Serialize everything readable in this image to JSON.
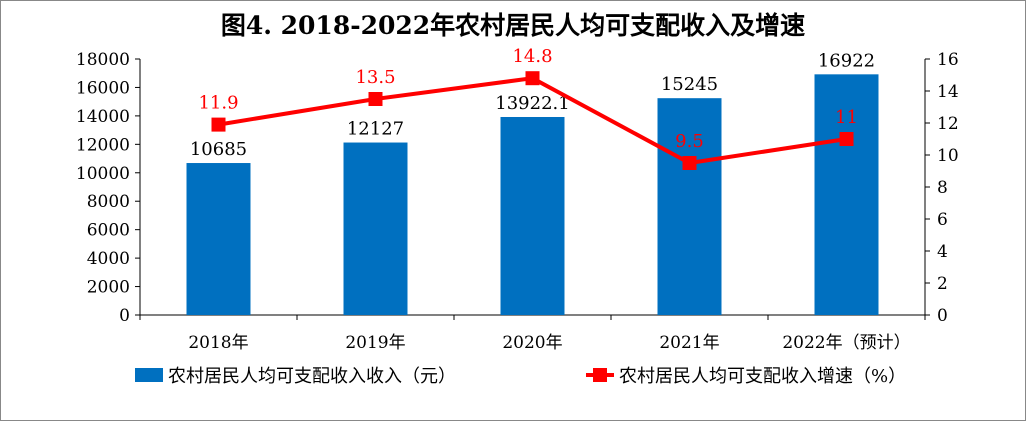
{
  "chart_data": {
    "type": "bar+line",
    "title": "图4. 2018-2022年农村居民人均可支配收入及增速",
    "categories": [
      "2018年",
      "2019年",
      "2020年",
      "2021年",
      "2022年（预计）"
    ],
    "series": [
      {
        "name": "农村居民人均可支配收入收入（元）",
        "type": "bar",
        "axis": "left",
        "color": "#0070C0",
        "values": [
          10685,
          12127,
          13922.1,
          15245,
          16922
        ],
        "labels": [
          "10685",
          "12127",
          "13922.1",
          "15245",
          "16922"
        ]
      },
      {
        "name": "农村居民人均可支配收入增速（%）",
        "type": "line",
        "axis": "right",
        "color": "#FF0000",
        "values": [
          11.9,
          13.5,
          14.8,
          9.5,
          11
        ],
        "labels": [
          "11.9",
          "13.5",
          "14.8",
          "9.5",
          "11"
        ]
      }
    ],
    "y_left": {
      "range": [
        0,
        18000
      ],
      "ticks": [
        "0",
        "2000",
        "4000",
        "6000",
        "8000",
        "10000",
        "12000",
        "14000",
        "16000",
        "18000"
      ]
    },
    "y_right": {
      "range": [
        0,
        16
      ],
      "ticks": [
        "0",
        "2",
        "4",
        "6",
        "8",
        "10",
        "12",
        "14",
        "16"
      ]
    },
    "grid": false,
    "legend_position": "bottom"
  }
}
